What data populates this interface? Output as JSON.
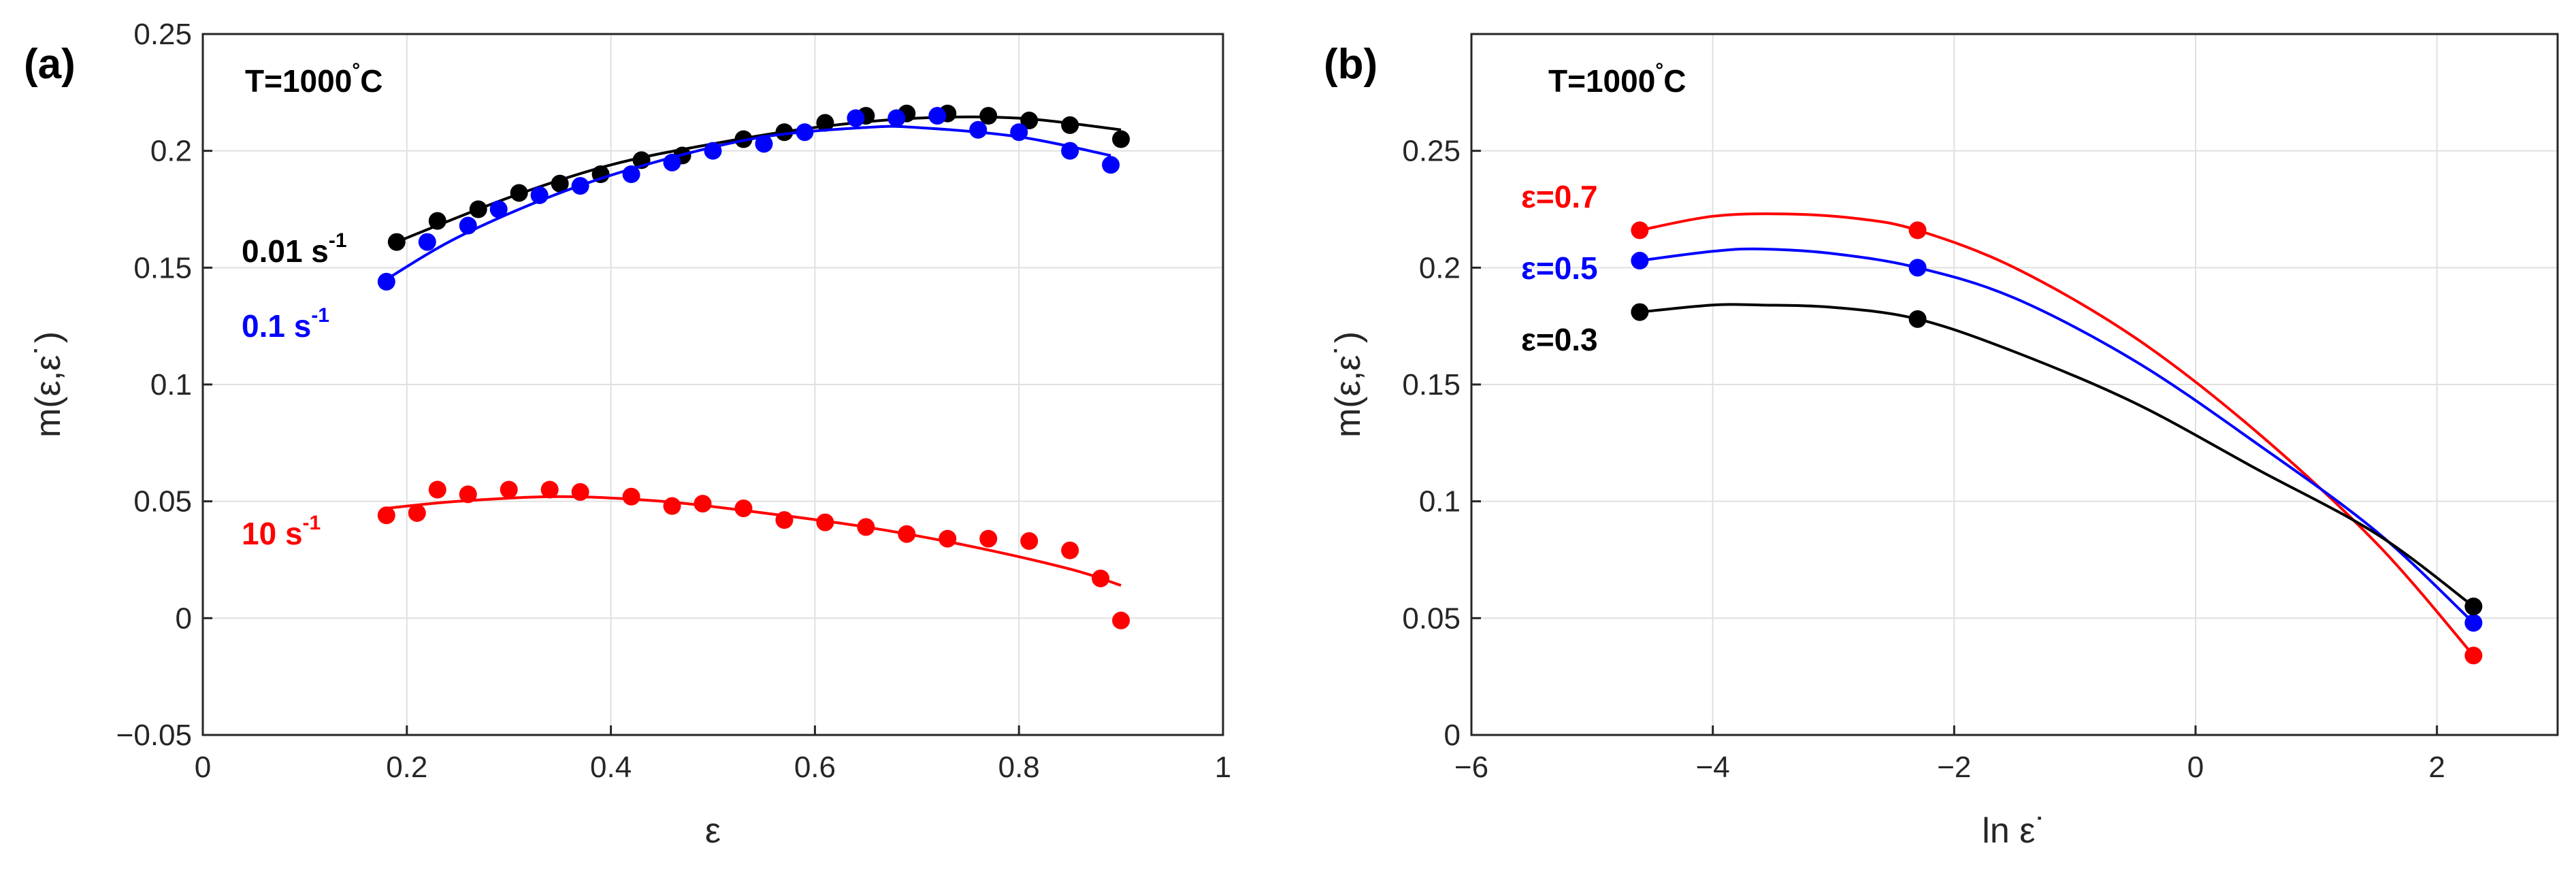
{
  "figure": {
    "panels": [
      "(a)",
      "(b)"
    ]
  },
  "chart_data": [
    {
      "type": "scatter",
      "panel_label": "(a)",
      "title": "",
      "annotation": {
        "text": "T=1000",
        "degree": "°",
        "unit": "C"
      },
      "xlabel": "ε",
      "ylabel": "m(ε,ε˙)",
      "xlim": [
        0,
        1
      ],
      "ylim": [
        -0.05,
        0.25
      ],
      "xticks": [
        0,
        0.2,
        0.4,
        0.6,
        0.8,
        1
      ],
      "yticks": [
        -0.05,
        0,
        0.05,
        0.1,
        0.15,
        0.2,
        0.25
      ],
      "xtick_labels": [
        "0",
        "0.2",
        "0.4",
        "0.6",
        "0.8",
        "1"
      ],
      "ytick_labels": [
        "−0.05",
        "0",
        "0.05",
        "0.1",
        "0.15",
        "0.2",
        "0.25"
      ],
      "grid": true,
      "series": [
        {
          "label": "0.01 s",
          "label_sup": "-1",
          "color": "#000000",
          "x": [
            0.19,
            0.23,
            0.27,
            0.31,
            0.35,
            0.39,
            0.43,
            0.47,
            0.53,
            0.57,
            0.61,
            0.65,
            0.69,
            0.73,
            0.77,
            0.81,
            0.85,
            0.9
          ],
          "y": [
            0.161,
            0.17,
            0.175,
            0.182,
            0.186,
            0.19,
            0.196,
            0.198,
            0.205,
            0.208,
            0.212,
            0.215,
            0.216,
            0.216,
            0.215,
            0.213,
            0.211,
            0.205
          ],
          "fit": [
            [
              0.19,
              0.161
            ],
            [
              0.3,
              0.18
            ],
            [
              0.4,
              0.194
            ],
            [
              0.5,
              0.203
            ],
            [
              0.6,
              0.21
            ],
            [
              0.7,
              0.214
            ],
            [
              0.8,
              0.214
            ],
            [
              0.9,
              0.209
            ]
          ]
        },
        {
          "label": "0.1 s",
          "label_sup": "-1",
          "color": "#0000ff",
          "x": [
            0.18,
            0.22,
            0.26,
            0.29,
            0.33,
            0.37,
            0.42,
            0.46,
            0.5,
            0.55,
            0.59,
            0.64,
            0.68,
            0.72,
            0.76,
            0.8,
            0.85,
            0.89
          ],
          "y": [
            0.144,
            0.161,
            0.168,
            0.175,
            0.181,
            0.185,
            0.19,
            0.195,
            0.2,
            0.203,
            0.208,
            0.214,
            0.214,
            0.215,
            0.209,
            0.208,
            0.2,
            0.194
          ],
          "fit": [
            [
              0.18,
              0.145
            ],
            [
              0.25,
              0.163
            ],
            [
              0.35,
              0.182
            ],
            [
              0.45,
              0.196
            ],
            [
              0.55,
              0.206
            ],
            [
              0.65,
              0.21
            ],
            [
              0.7,
              0.21
            ],
            [
              0.8,
              0.206
            ],
            [
              0.89,
              0.198
            ]
          ]
        },
        {
          "label": "10 s",
          "label_sup": "-1",
          "color": "#ff0000",
          "x": [
            0.18,
            0.21,
            0.23,
            0.26,
            0.3,
            0.34,
            0.37,
            0.42,
            0.46,
            0.49,
            0.53,
            0.57,
            0.61,
            0.65,
            0.69,
            0.73,
            0.77,
            0.81,
            0.85,
            0.88,
            0.9
          ],
          "y": [
            0.044,
            0.045,
            0.055,
            0.053,
            0.055,
            0.055,
            0.054,
            0.052,
            0.048,
            0.049,
            0.047,
            0.042,
            0.041,
            0.039,
            0.036,
            0.034,
            0.034,
            0.033,
            0.029,
            0.017,
            -0.001
          ],
          "fit": [
            [
              0.18,
              0.047
            ],
            [
              0.25,
              0.05
            ],
            [
              0.35,
              0.052
            ],
            [
              0.45,
              0.05
            ],
            [
              0.55,
              0.045
            ],
            [
              0.65,
              0.039
            ],
            [
              0.75,
              0.031
            ],
            [
              0.85,
              0.021
            ],
            [
              0.9,
              0.014
            ]
          ]
        }
      ]
    },
    {
      "type": "line",
      "panel_label": "(b)",
      "title": "",
      "annotation": {
        "text": "T=1000",
        "degree": "°",
        "unit": "C"
      },
      "xlabel": "ln ε˙",
      "ylabel": "m(ε,ε˙)",
      "xlim": [
        -6,
        3
      ],
      "ylim": [
        0,
        0.3
      ],
      "xticks": [
        -6,
        -4,
        -2,
        0,
        2
      ],
      "yticks": [
        0,
        0.05,
        0.1,
        0.15,
        0.2,
        0.25
      ],
      "xtick_labels": [
        "−6",
        "−4",
        "−2",
        "0",
        "2"
      ],
      "ytick_labels": [
        "0",
        "0.05",
        "0.1",
        "0.15",
        "0.2",
        "0.25"
      ],
      "grid": true,
      "series": [
        {
          "label": "ε=0.7",
          "color": "#ff0000",
          "points": [
            [
              -4.605,
              0.216
            ],
            [
              -2.303,
              0.216
            ],
            [
              2.303,
              0.034
            ]
          ],
          "curve": [
            [
              -4.605,
              0.216
            ],
            [
              -4.0,
              0.222
            ],
            [
              -3.4,
              0.223
            ],
            [
              -2.8,
              0.221
            ],
            [
              -2.303,
              0.216
            ],
            [
              -1.5,
              0.2
            ],
            [
              -0.5,
              0.17
            ],
            [
              0.5,
              0.13
            ],
            [
              1.5,
              0.082
            ],
            [
              2.303,
              0.034
            ]
          ]
        },
        {
          "label": "ε=0.5",
          "color": "#0000ff",
          "points": [
            [
              -4.605,
              0.203
            ],
            [
              -2.303,
              0.2
            ],
            [
              2.303,
              0.048
            ]
          ],
          "curve": [
            [
              -4.605,
              0.203
            ],
            [
              -4.0,
              0.207
            ],
            [
              -3.6,
              0.208
            ],
            [
              -3.0,
              0.206
            ],
            [
              -2.303,
              0.2
            ],
            [
              -1.5,
              0.187
            ],
            [
              -0.5,
              0.16
            ],
            [
              0.5,
              0.125
            ],
            [
              1.5,
              0.087
            ],
            [
              2.303,
              0.048
            ]
          ]
        },
        {
          "label": "ε=0.3",
          "color": "#000000",
          "points": [
            [
              -4.605,
              0.181
            ],
            [
              -2.303,
              0.178
            ],
            [
              2.303,
              0.055
            ]
          ],
          "curve": [
            [
              -4.605,
              0.181
            ],
            [
              -4.0,
              0.184
            ],
            [
              -3.6,
              0.184
            ],
            [
              -3.0,
              0.183
            ],
            [
              -2.303,
              0.178
            ],
            [
              -1.5,
              0.164
            ],
            [
              -0.5,
              0.142
            ],
            [
              0.5,
              0.114
            ],
            [
              1.5,
              0.086
            ],
            [
              2.303,
              0.055
            ]
          ]
        }
      ]
    }
  ]
}
